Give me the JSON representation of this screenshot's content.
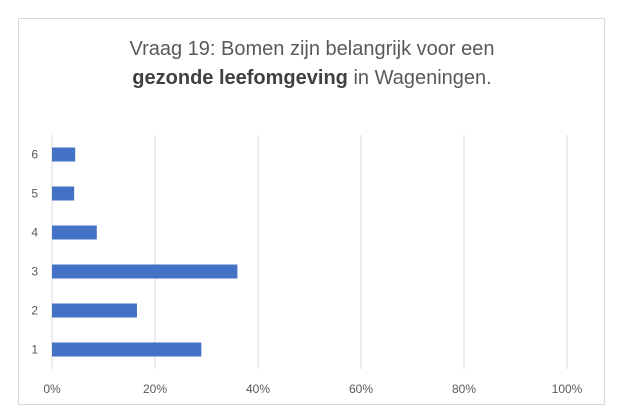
{
  "chart_data": {
    "type": "bar",
    "orientation": "horizontal",
    "title": {
      "line1": "Vraag 19: Bomen zijn belangrijk voor een",
      "line2_bold": "gezonde leefomgeving",
      "line2_rest": " in Wageningen."
    },
    "categories": [
      "1",
      "2",
      "3",
      "4",
      "5",
      "6"
    ],
    "values": [
      0.29,
      0.165,
      0.36,
      0.087,
      0.043,
      0.045
    ],
    "xlim": [
      0,
      1
    ],
    "xticks": [
      "0%",
      "20%",
      "40%",
      "60%",
      "80%",
      "100%"
    ],
    "grid": true,
    "legend": "none",
    "bar_color": "#4472c4",
    "grid_color": "#d9d9d9",
    "xlabel": "",
    "ylabel": ""
  }
}
